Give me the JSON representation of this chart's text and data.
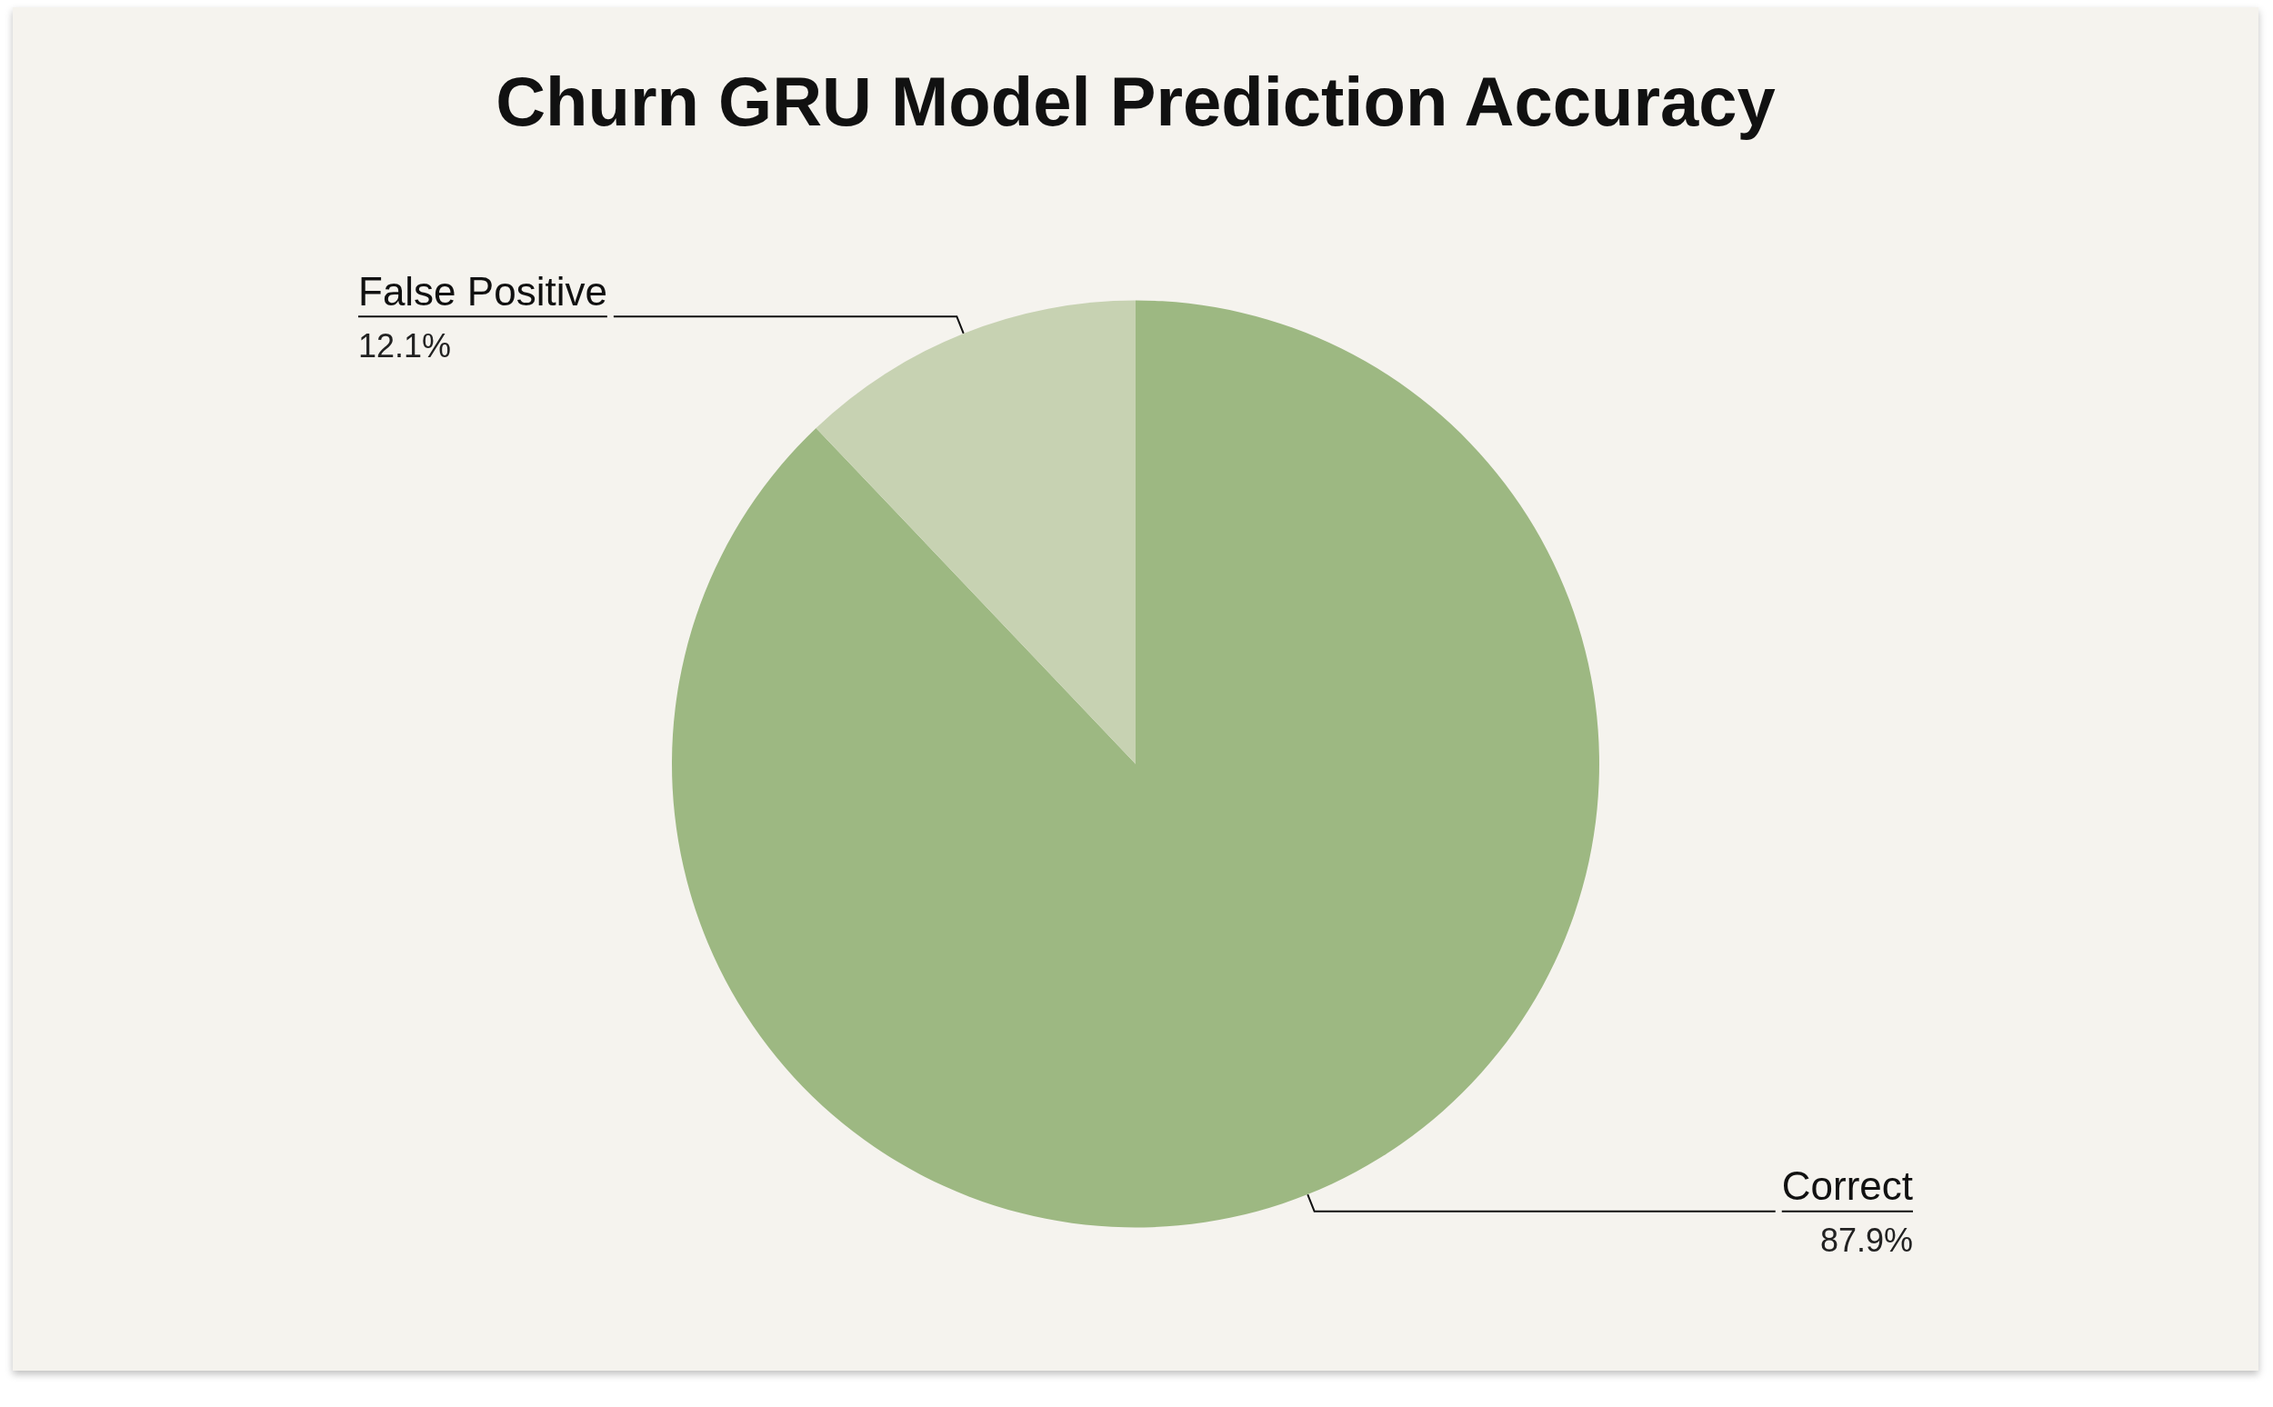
{
  "chart_data": {
    "type": "pie",
    "title": "Churn GRU Model Prediction Accuracy",
    "categories": [
      "Correct",
      "False Positive"
    ],
    "values": [
      87.9,
      12.1
    ],
    "colors": [
      "#9db882",
      "#c7d2b2"
    ],
    "value_labels": [
      "87.9%",
      "12.1%"
    ]
  }
}
